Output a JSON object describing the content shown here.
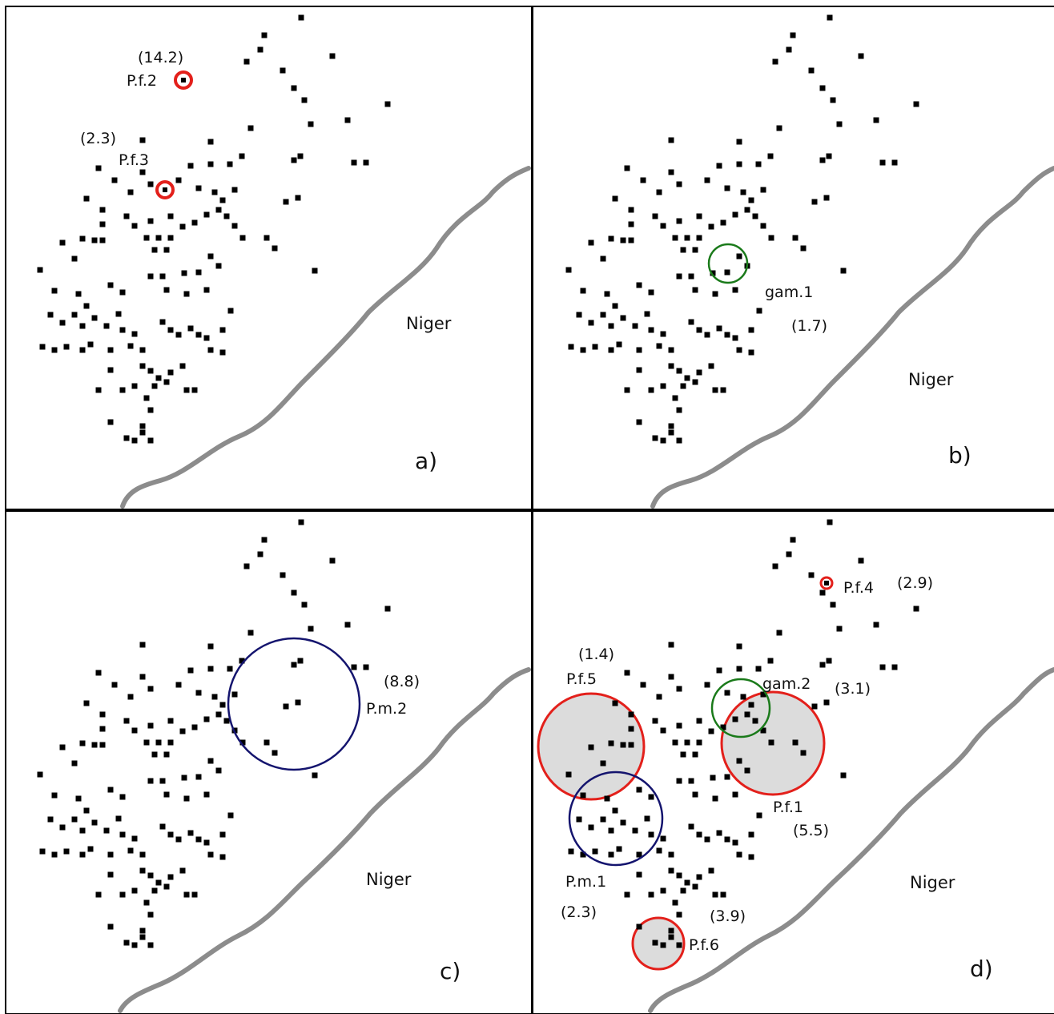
{
  "figure": {
    "panels": [
      {
        "id": "a",
        "label": "a)",
        "river_label": "Niger",
        "clusters": [
          {
            "name": "P.f.2",
            "value": "(14.2)",
            "color": "#e3201b",
            "fill": "none",
            "kind": "small"
          },
          {
            "name": "P.f.3",
            "value": "(2.3)",
            "color": "#e3201b",
            "fill": "none",
            "kind": "small"
          }
        ]
      },
      {
        "id": "b",
        "label": "b)",
        "river_label": "Niger",
        "clusters": [
          {
            "name": "gam.1",
            "value": "(1.7)",
            "color": "#1a7a1a",
            "fill": "none",
            "kind": "circle"
          }
        ]
      },
      {
        "id": "c",
        "label": "c)",
        "river_label": "Niger",
        "clusters": [
          {
            "name": "P.m.2",
            "value": "(8.8)",
            "color": "#14146e",
            "fill": "none",
            "kind": "circle"
          }
        ]
      },
      {
        "id": "d",
        "label": "d)",
        "river_label": "Niger",
        "clusters": [
          {
            "name": "P.f.4",
            "value": "(2.9)",
            "color": "#e3201b",
            "fill": "none",
            "kind": "small"
          },
          {
            "name": "P.f.5",
            "value": "(1.4)",
            "color": "#e3201b",
            "fill": "#dcdcdc",
            "kind": "circle"
          },
          {
            "name": "gam.2",
            "value": "(3.1)",
            "color": "#1a7a1a",
            "fill": "none",
            "kind": "circle"
          },
          {
            "name": "P.f.1",
            "value": "(5.5)",
            "color": "#e3201b",
            "fill": "#dcdcdc",
            "kind": "circle"
          },
          {
            "name": "P.m.1",
            "value": "(2.3)",
            "color": "#14146e",
            "fill": "none",
            "kind": "circle"
          },
          {
            "name": "P.f.6",
            "value": "(3.9)",
            "color": "#e3201b",
            "fill": "#dcdcdc",
            "kind": "circle"
          }
        ]
      }
    ],
    "colors": {
      "river": "#8c8c8c",
      "site": "#000000",
      "frame": "#000000",
      "background": "#ffffff"
    }
  }
}
